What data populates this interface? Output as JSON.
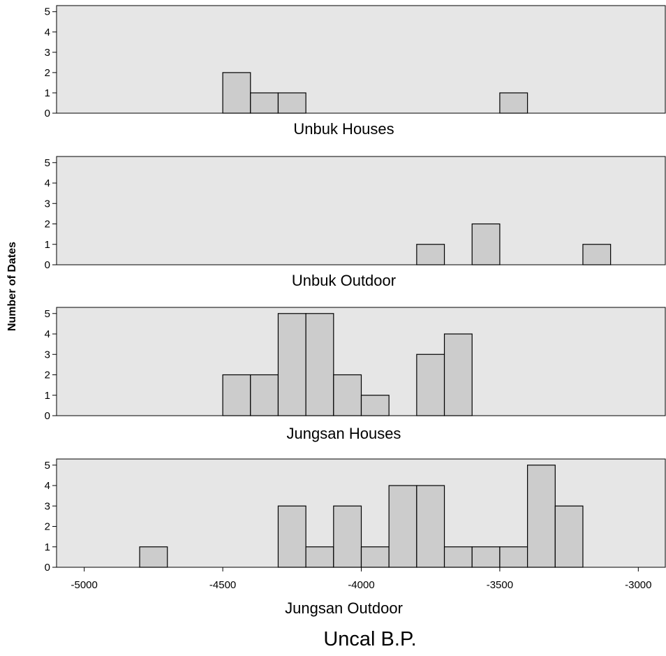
{
  "chart_data": {
    "type": "bar",
    "subtype": "histogram-panels",
    "ylabel": "Number of Dates",
    "xlabel": "Uncal B.P.",
    "bin_width": 100,
    "xlim": [
      -5100,
      -2900
    ],
    "ylim": [
      0,
      5.3
    ],
    "x_ticks": [
      -5000,
      -4500,
      -4000,
      -3500,
      -3000
    ],
    "y_ticks": [
      0,
      1,
      2,
      3,
      4,
      5
    ],
    "colors": {
      "bar_fill": "#cccccc",
      "bar_stroke": "#000000",
      "panel_bg": "#e6e6e6"
    },
    "grid": false,
    "panels": [
      {
        "label": "Unbuk Houses",
        "bins": [
          {
            "x0": -4500,
            "x1": -4400,
            "count": 2
          },
          {
            "x0": -4400,
            "x1": -4300,
            "count": 1
          },
          {
            "x0": -4300,
            "x1": -4200,
            "count": 1
          },
          {
            "x0": -3500,
            "x1": -3400,
            "count": 1
          }
        ]
      },
      {
        "label": "Unbuk Outdoor",
        "bins": [
          {
            "x0": -3800,
            "x1": -3700,
            "count": 1
          },
          {
            "x0": -3600,
            "x1": -3500,
            "count": 2
          },
          {
            "x0": -3200,
            "x1": -3100,
            "count": 1
          }
        ]
      },
      {
        "label": "Jungsan Houses",
        "bins": [
          {
            "x0": -4500,
            "x1": -4400,
            "count": 2
          },
          {
            "x0": -4400,
            "x1": -4300,
            "count": 2
          },
          {
            "x0": -4300,
            "x1": -4200,
            "count": 5
          },
          {
            "x0": -4200,
            "x1": -4100,
            "count": 5
          },
          {
            "x0": -4100,
            "x1": -4000,
            "count": 2
          },
          {
            "x0": -4000,
            "x1": -3900,
            "count": 1
          },
          {
            "x0": -3800,
            "x1": -3700,
            "count": 3
          },
          {
            "x0": -3700,
            "x1": -3600,
            "count": 4
          }
        ]
      },
      {
        "label": "Jungsan Outdoor",
        "bins": [
          {
            "x0": -4800,
            "x1": -4700,
            "count": 1
          },
          {
            "x0": -4300,
            "x1": -4200,
            "count": 3
          },
          {
            "x0": -4200,
            "x1": -4100,
            "count": 1
          },
          {
            "x0": -4100,
            "x1": -4000,
            "count": 3
          },
          {
            "x0": -4000,
            "x1": -3900,
            "count": 1
          },
          {
            "x0": -3900,
            "x1": -3800,
            "count": 4
          },
          {
            "x0": -3800,
            "x1": -3700,
            "count": 4
          },
          {
            "x0": -3700,
            "x1": -3600,
            "count": 1
          },
          {
            "x0": -3600,
            "x1": -3500,
            "count": 1
          },
          {
            "x0": -3500,
            "x1": -3400,
            "count": 1
          },
          {
            "x0": -3400,
            "x1": -3300,
            "count": 5
          },
          {
            "x0": -3300,
            "x1": -3200,
            "count": 3
          }
        ]
      }
    ]
  }
}
